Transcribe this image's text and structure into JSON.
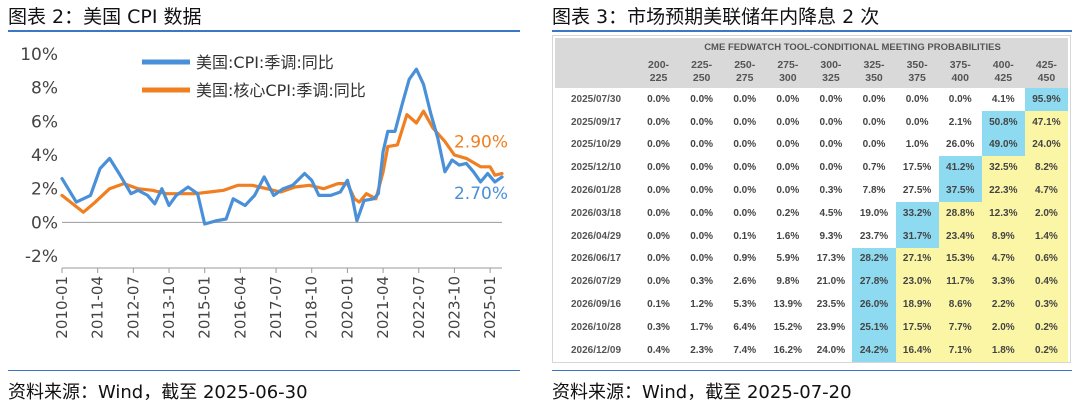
{
  "left_panel": {
    "title": "图表 2：美国 CPI 数据",
    "source": "资料来源：Wind，截至 2025-06-30"
  },
  "right_panel": {
    "title": "图表 3：市场预期美联储年内降息 2 次",
    "source": "资料来源：Wind，截至 2025-07-20"
  },
  "colors": {
    "headline": "#4a90d9",
    "core": "#f07f22",
    "highlight_blue": "#8edaf1",
    "highlight_yellow": "#fbf5a6",
    "rule": "#3b78c4"
  },
  "chart_data": [
    {
      "type": "line",
      "title": "",
      "xlabel": "",
      "ylabel": "",
      "ylim": [
        -2,
        10
      ],
      "yticks": [
        "-2%",
        "0%",
        "2%",
        "4%",
        "6%",
        "8%",
        "10%"
      ],
      "xticks": [
        "2010-01",
        "2011-04",
        "2012-07",
        "2013-10",
        "2015-01",
        "2016-04",
        "2017-07",
        "2018-10",
        "2020-01",
        "2021-04",
        "2022-07",
        "2023-10",
        "2025-01"
      ],
      "x_range": [
        "2010-01",
        "2025-06"
      ],
      "legend_position": "top-left",
      "grid": false,
      "series": [
        {
          "name": "美国:CPI:季调:同比",
          "color": "#4a90d9",
          "end_label": "2.70%",
          "x": [
            "2010-01",
            "2010-07",
            "2011-01",
            "2011-05",
            "2011-09",
            "2012-01",
            "2012-06",
            "2012-09",
            "2013-01",
            "2013-04",
            "2013-07",
            "2013-10",
            "2014-01",
            "2014-06",
            "2014-10",
            "2015-01",
            "2015-06",
            "2015-10",
            "2016-01",
            "2016-06",
            "2016-10",
            "2017-02",
            "2017-06",
            "2017-10",
            "2018-02",
            "2018-07",
            "2018-10",
            "2019-01",
            "2019-06",
            "2019-10",
            "2020-01",
            "2020-03",
            "2020-05",
            "2020-08",
            "2020-12",
            "2021-02",
            "2021-04",
            "2021-06",
            "2021-09",
            "2021-12",
            "2022-03",
            "2022-06",
            "2022-09",
            "2022-12",
            "2023-03",
            "2023-06",
            "2023-09",
            "2023-12",
            "2024-03",
            "2024-06",
            "2024-09",
            "2024-12",
            "2025-03",
            "2025-06"
          ],
          "values": [
            2.6,
            1.2,
            1.6,
            3.2,
            3.8,
            2.9,
            1.7,
            1.9,
            1.6,
            1.1,
            2.0,
            1.0,
            1.6,
            2.1,
            1.7,
            -0.1,
            0.1,
            0.2,
            1.4,
            1.0,
            1.6,
            2.7,
            1.6,
            2.0,
            2.2,
            2.9,
            2.5,
            1.6,
            1.6,
            1.8,
            2.5,
            1.5,
            0.1,
            1.3,
            1.4,
            1.7,
            4.2,
            5.4,
            5.4,
            7.0,
            8.5,
            9.1,
            8.2,
            6.5,
            5.0,
            3.0,
            3.7,
            3.4,
            3.5,
            3.0,
            2.4,
            2.9,
            2.4,
            2.7
          ]
        },
        {
          "name": "美国:核心CPI:季调:同比",
          "color": "#f07f22",
          "end_label": "2.90%",
          "x": [
            "2010-01",
            "2010-10",
            "2011-03",
            "2011-09",
            "2012-03",
            "2012-09",
            "2013-03",
            "2013-09",
            "2014-03",
            "2014-09",
            "2015-03",
            "2015-09",
            "2016-03",
            "2016-09",
            "2017-03",
            "2017-09",
            "2018-03",
            "2018-09",
            "2019-03",
            "2019-09",
            "2020-01",
            "2020-04",
            "2020-06",
            "2020-09",
            "2021-01",
            "2021-04",
            "2021-06",
            "2021-10",
            "2022-02",
            "2022-06",
            "2022-09",
            "2023-01",
            "2023-06",
            "2023-10",
            "2024-03",
            "2024-09",
            "2025-01",
            "2025-03",
            "2025-06"
          ],
          "values": [
            1.6,
            0.6,
            1.2,
            2.0,
            2.3,
            2.0,
            1.9,
            1.7,
            1.7,
            1.7,
            1.8,
            1.9,
            2.2,
            2.2,
            2.0,
            1.8,
            2.1,
            2.2,
            2.0,
            2.3,
            2.3,
            1.4,
            1.2,
            1.7,
            1.4,
            3.0,
            4.5,
            4.6,
            6.4,
            5.9,
            6.6,
            5.6,
            4.8,
            4.0,
            3.8,
            3.3,
            3.3,
            2.8,
            2.9
          ]
        }
      ]
    },
    {
      "type": "table",
      "title": "CME FEDWATCH TOOL-CONDITIONAL MEETING PROBABILITIES",
      "columns": [
        "200-225",
        "225-250",
        "250-275",
        "275-300",
        "300-325",
        "325-350",
        "350-375",
        "375-400",
        "400-425",
        "425-450"
      ],
      "rows": [
        {
          "date": "2025/07/30",
          "values": [
            "0.0%",
            "0.0%",
            "0.0%",
            "0.0%",
            "0.0%",
            "0.0%",
            "0.0%",
            "0.0%",
            "4.1%",
            "95.9%"
          ],
          "highlight": {
            "9": "blue"
          }
        },
        {
          "date": "2025/09/17",
          "values": [
            "0.0%",
            "0.0%",
            "0.0%",
            "0.0%",
            "0.0%",
            "0.0%",
            "0.0%",
            "2.1%",
            "50.8%",
            "47.1%"
          ],
          "highlight": {
            "8": "blue",
            "9": "yellow"
          }
        },
        {
          "date": "2025/10/29",
          "values": [
            "0.0%",
            "0.0%",
            "0.0%",
            "0.0%",
            "0.0%",
            "0.0%",
            "1.0%",
            "26.0%",
            "49.0%",
            "24.0%"
          ],
          "highlight": {
            "8": "blue",
            "9": "yellow"
          }
        },
        {
          "date": "2025/12/10",
          "values": [
            "0.0%",
            "0.0%",
            "0.0%",
            "0.0%",
            "0.0%",
            "0.7%",
            "17.5%",
            "41.2%",
            "32.5%",
            "8.2%"
          ],
          "highlight": {
            "7": "blue",
            "8": "yellow",
            "9": "yellow"
          }
        },
        {
          "date": "2026/01/28",
          "values": [
            "0.0%",
            "0.0%",
            "0.0%",
            "0.0%",
            "0.3%",
            "7.8%",
            "27.5%",
            "37.5%",
            "22.3%",
            "4.7%"
          ],
          "highlight": {
            "7": "blue",
            "8": "yellow",
            "9": "yellow"
          }
        },
        {
          "date": "2026/03/18",
          "values": [
            "0.0%",
            "0.0%",
            "0.0%",
            "0.2%",
            "4.5%",
            "19.0%",
            "33.2%",
            "28.8%",
            "12.3%",
            "2.0%"
          ],
          "highlight": {
            "6": "blue",
            "7": "yellow",
            "8": "yellow",
            "9": "yellow"
          }
        },
        {
          "date": "2026/04/29",
          "values": [
            "0.0%",
            "0.0%",
            "0.1%",
            "1.6%",
            "9.3%",
            "23.7%",
            "31.7%",
            "23.4%",
            "8.9%",
            "1.4%"
          ],
          "highlight": {
            "6": "blue",
            "7": "yellow",
            "8": "yellow",
            "9": "yellow"
          }
        },
        {
          "date": "2026/06/17",
          "values": [
            "0.0%",
            "0.0%",
            "0.9%",
            "5.9%",
            "17.3%",
            "28.2%",
            "27.1%",
            "15.3%",
            "4.7%",
            "0.6%"
          ],
          "highlight": {
            "5": "blue",
            "6": "yellow",
            "7": "yellow",
            "8": "yellow",
            "9": "yellow"
          }
        },
        {
          "date": "2026/07/29",
          "values": [
            "0.0%",
            "0.3%",
            "2.6%",
            "9.8%",
            "21.0%",
            "27.8%",
            "23.0%",
            "11.7%",
            "3.3%",
            "0.4%"
          ],
          "highlight": {
            "5": "blue",
            "6": "yellow",
            "7": "yellow",
            "8": "yellow",
            "9": "yellow"
          }
        },
        {
          "date": "2026/09/16",
          "values": [
            "0.1%",
            "1.2%",
            "5.3%",
            "13.9%",
            "23.5%",
            "26.0%",
            "18.9%",
            "8.6%",
            "2.2%",
            "0.3%"
          ],
          "highlight": {
            "5": "blue",
            "6": "yellow",
            "7": "yellow",
            "8": "yellow",
            "9": "yellow"
          }
        },
        {
          "date": "2026/10/28",
          "values": [
            "0.3%",
            "1.7%",
            "6.4%",
            "15.2%",
            "23.9%",
            "25.1%",
            "17.5%",
            "7.7%",
            "2.0%",
            "0.2%"
          ],
          "highlight": {
            "5": "blue",
            "6": "yellow",
            "7": "yellow",
            "8": "yellow",
            "9": "yellow"
          }
        },
        {
          "date": "2026/12/09",
          "values": [
            "0.4%",
            "2.3%",
            "7.4%",
            "16.2%",
            "24.0%",
            "24.2%",
            "16.4%",
            "7.1%",
            "1.8%",
            "0.2%"
          ],
          "highlight": {
            "5": "blue",
            "6": "yellow",
            "7": "yellow",
            "8": "yellow",
            "9": "yellow"
          }
        }
      ]
    }
  ]
}
